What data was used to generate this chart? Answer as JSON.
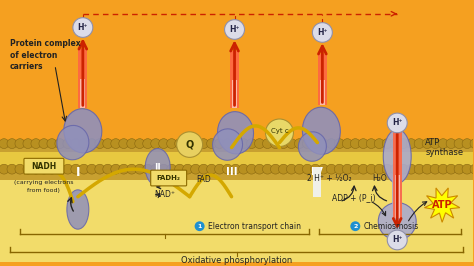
{
  "bg_orange": "#F5A020",
  "bg_yellow": "#F2DC6A",
  "membrane_outer_color": "#C8A030",
  "membrane_inner_color": "#E8C840",
  "bead_color": "#B89020",
  "complex_fill": "#9090BB",
  "complex_edge": "#6666AA",
  "arrow_red": "#CC2200",
  "text_dark": "#222222",
  "text_brown": "#5C3A00",
  "hball_fill": "#DCDCE8",
  "hball_edge": "#9090AA",
  "nadh_box": "#F2DC6A",
  "nadh_edge": "#8C6A00",
  "atp_star": "#FFFF00",
  "atp_text": "#CC2200",
  "yellow_line": "#D4A800",
  "dashed_red": "#CC2200",
  "bracket_color": "#886600",
  "title": "Oxidative phosphorylation",
  "label1": "Electron transport chain",
  "label2": "Chemiosmosis",
  "prot_label": "Protein complex\nof electron\ncarriers"
}
